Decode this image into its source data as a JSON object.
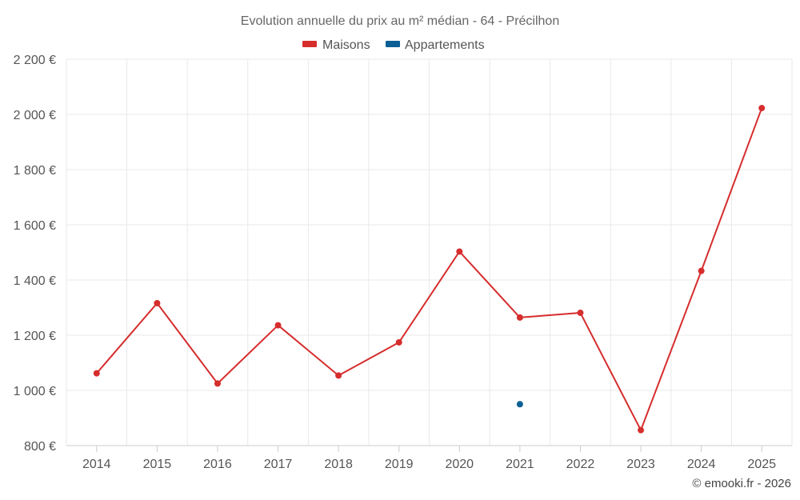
{
  "chart_data": {
    "type": "line",
    "title": "Evolution annuelle du prix au m² médian - 64 - Précilhon",
    "categories": [
      "2014",
      "2015",
      "2016",
      "2017",
      "2018",
      "2019",
      "2020",
      "2021",
      "2022",
      "2023",
      "2024",
      "2025"
    ],
    "series": [
      {
        "name": "Maisons",
        "color": "#d62d2d",
        "values": [
          1062,
          1316,
          1025,
          1236,
          1054,
          1174,
          1503,
          1264,
          1281,
          856,
          1433,
          2023
        ]
      },
      {
        "name": "Appartements",
        "color": "#0b5f95",
        "values": [
          null,
          null,
          null,
          null,
          null,
          null,
          null,
          950,
          null,
          null,
          null,
          null
        ]
      }
    ],
    "ylim": [
      800,
      2200
    ],
    "yticks": [
      800,
      1000,
      1200,
      1400,
      1600,
      1800,
      2000,
      2200
    ],
    "ytick_labels": [
      "800 €",
      "1 000 €",
      "1 200 €",
      "1 400 €",
      "1 600 €",
      "1 800 €",
      "2 000 €",
      "2 200 €"
    ],
    "grid": true,
    "legend_position": "top-center",
    "xlabel": "",
    "ylabel": ""
  },
  "credit": "© emooki.fr - 2026"
}
